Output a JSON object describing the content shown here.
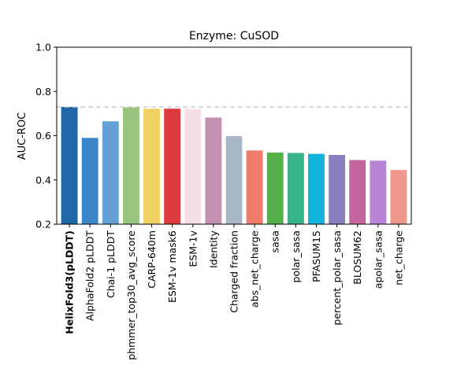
{
  "chart_data": {
    "type": "bar",
    "title": "Enzyme: CuSOD",
    "xlabel": "",
    "ylabel": "AUC-ROC",
    "ylim": [
      0.2,
      1.0
    ],
    "yticks": [
      "0.2",
      "0.4",
      "0.6",
      "0.8",
      "1.0"
    ],
    "reference_line": 0.73,
    "categories": [
      "HelixFold3(pLDDT)",
      "AlphaFold2 pLDDT",
      "Chai-1 pLDDT",
      "phmmer_top30_avg_score",
      "CARP-640m",
      "ESM-1v mask6",
      "ESM-1v",
      "Identity",
      "Charged fraction",
      "abs_net_charge",
      "sasa",
      "polar_sasa",
      "PFASUM15",
      "percent_polar_sasa",
      "BLOSUM62",
      "apolar_sasa",
      "net_charge"
    ],
    "values": [
      0.73,
      0.59,
      0.665,
      0.728,
      0.722,
      0.722,
      0.72,
      0.682,
      0.598,
      0.533,
      0.524,
      0.522,
      0.518,
      0.513,
      0.49,
      0.487,
      0.445
    ],
    "colors": [
      "#2066a8",
      "#3a86c8",
      "#64a0d6",
      "#98c47e",
      "#f1d163",
      "#dc3a3c",
      "#f5dde8",
      "#c490b0",
      "#a9b8c8",
      "#f27a6b",
      "#55b24a",
      "#37b48c",
      "#13b4dc",
      "#8a80c0",
      "#c465a0",
      "#b884d6",
      "#f0978b"
    ],
    "highlighted": "HelixFold3(pLDDT)",
    "grid": false
  }
}
